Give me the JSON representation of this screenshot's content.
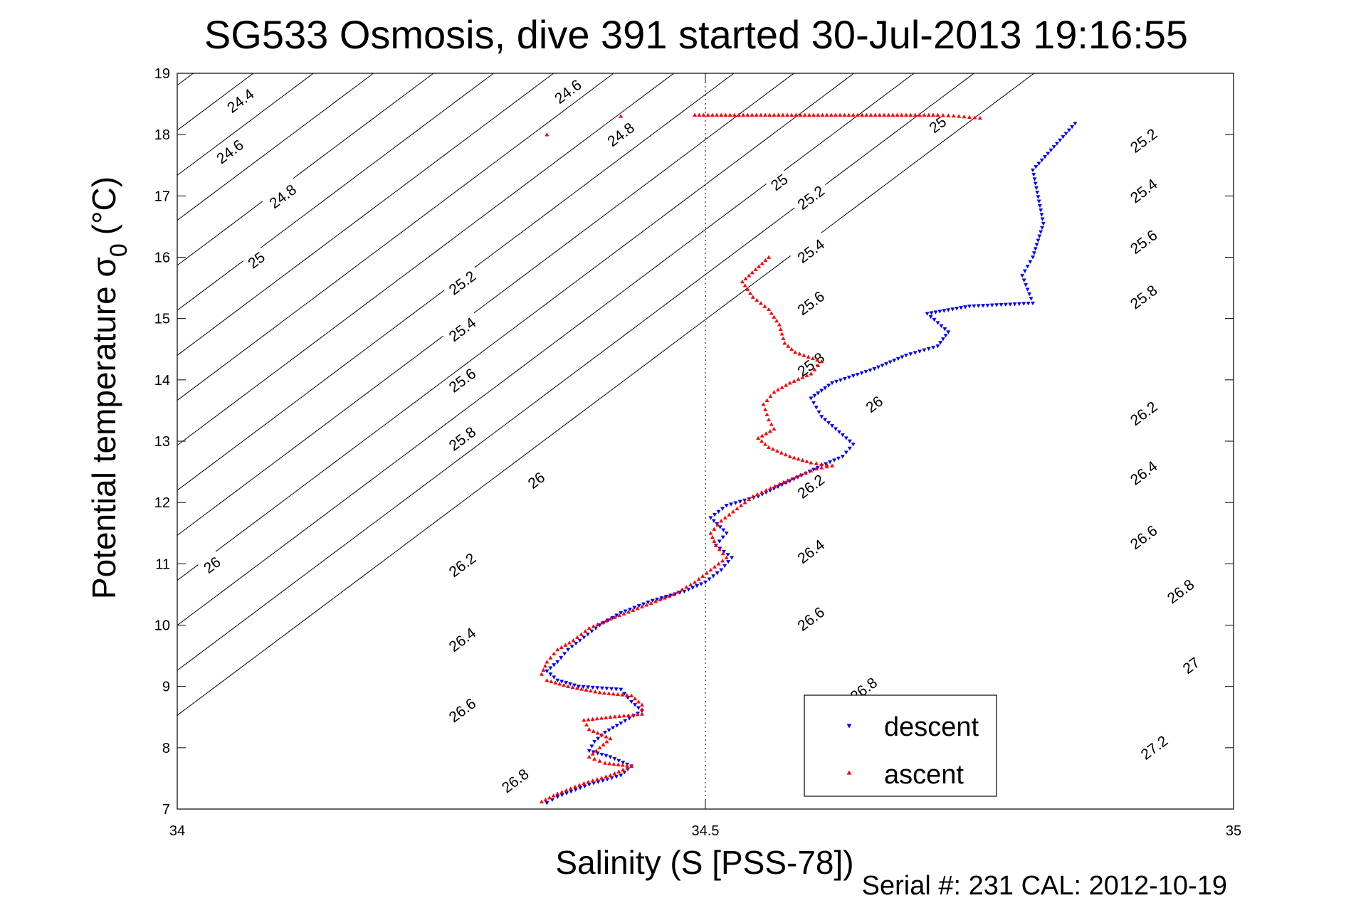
{
  "chart_data": {
    "type": "scatter",
    "title": "SG533 Osmosis, dive 391 started 30-Jul-2013 19:16:55",
    "xlabel": "Salinity (S [PSS-78])",
    "ylabel_main": "Potential temperature σ",
    "ylabel_sub": "0",
    "ylabel_unit": "(°C)",
    "xlim": [
      34,
      35
    ],
    "ylim": [
      7,
      19
    ],
    "xticks": [
      34,
      34.5,
      35
    ],
    "xtick_labels": [
      "34",
      "34.5",
      "35"
    ],
    "yticks": [
      7,
      8,
      9,
      10,
      11,
      12,
      13,
      14,
      15,
      16,
      17,
      18,
      19
    ],
    "ytick_labels": [
      "7",
      "8",
      "9",
      "10",
      "11",
      "12",
      "13",
      "14",
      "15",
      "16",
      "17",
      "18",
      "19"
    ],
    "grid": "dotted at x = 34.5",
    "footer": "Serial #: 231  CAL: 2012-10-19",
    "legend_position": "bottom-right",
    "density_contours": {
      "color": "#000000",
      "levels": [
        24.4,
        24.6,
        24.8,
        25,
        25.2,
        25.4,
        25.6,
        25.8,
        26,
        26.2,
        26.4,
        26.6,
        26.8,
        27,
        27.2
      ],
      "labels": [
        {
          "text": "24.4",
          "x": 34.06,
          "y": 18.55
        },
        {
          "text": "24.6",
          "x": 34.05,
          "y": 17.72
        },
        {
          "text": "24.8",
          "x": 34.1,
          "y": 16.99
        },
        {
          "text": "25",
          "x": 34.075,
          "y": 15.95
        },
        {
          "text": "25.2",
          "x": 34.27,
          "y": 15.58
        },
        {
          "text": "25.4",
          "x": 34.27,
          "y": 14.82
        },
        {
          "text": "25.6",
          "x": 34.27,
          "y": 13.99
        },
        {
          "text": "25.8",
          "x": 34.27,
          "y": 13.04
        },
        {
          "text": "26",
          "x": 34.34,
          "y": 12.36
        },
        {
          "text": "26",
          "x": 34.033,
          "y": 10.98
        },
        {
          "text": "26.2",
          "x": 34.27,
          "y": 10.98
        },
        {
          "text": "26.4",
          "x": 34.27,
          "y": 9.76
        },
        {
          "text": "26.6",
          "x": 34.27,
          "y": 8.61
        },
        {
          "text": "26.8",
          "x": 34.32,
          "y": 7.46
        },
        {
          "text": "24.6",
          "x": 34.37,
          "y": 18.7
        },
        {
          "text": "24.8",
          "x": 34.42,
          "y": 18.0
        },
        {
          "text": "25",
          "x": 34.57,
          "y": 17.22
        },
        {
          "text": "25.2",
          "x": 34.6,
          "y": 16.97
        },
        {
          "text": "25.4",
          "x": 34.6,
          "y": 16.1
        },
        {
          "text": "25.6",
          "x": 34.6,
          "y": 15.25
        },
        {
          "text": "25.8",
          "x": 34.6,
          "y": 14.25
        },
        {
          "text": "26",
          "x": 34.66,
          "y": 13.6
        },
        {
          "text": "26.2",
          "x": 34.6,
          "y": 12.26
        },
        {
          "text": "26.4",
          "x": 34.6,
          "y": 11.2
        },
        {
          "text": "26.6",
          "x": 34.6,
          "y": 10.1
        },
        {
          "text": "26.8",
          "x": 34.65,
          "y": 8.95
        },
        {
          "text": "25",
          "x": 34.72,
          "y": 18.16
        },
        {
          "text": "25.2",
          "x": 34.915,
          "y": 17.9
        },
        {
          "text": "25.4",
          "x": 34.915,
          "y": 17.08
        },
        {
          "text": "25.6",
          "x": 34.915,
          "y": 16.25
        },
        {
          "text": "25.8",
          "x": 34.915,
          "y": 15.35
        },
        {
          "text": "26.2",
          "x": 34.915,
          "y": 13.45
        },
        {
          "text": "26.4",
          "x": 34.915,
          "y": 12.48
        },
        {
          "text": "26.6",
          "x": 34.915,
          "y": 11.43
        },
        {
          "text": "26.8",
          "x": 34.95,
          "y": 10.55
        },
        {
          "text": "27",
          "x": 34.96,
          "y": 9.34
        },
        {
          "text": "27.2",
          "x": 34.925,
          "y": 8.0
        }
      ]
    },
    "series": [
      {
        "name": "descent",
        "color": "#0000ff",
        "marker": "triangle-down",
        "path": [
          [
            34.85,
            18.18
          ],
          [
            34.81,
            17.42
          ],
          [
            34.82,
            16.55
          ],
          [
            34.81,
            16.0
          ],
          [
            34.8,
            15.7
          ],
          [
            34.81,
            15.25
          ],
          [
            34.75,
            15.2
          ],
          [
            34.71,
            15.08
          ],
          [
            34.73,
            14.78
          ],
          [
            34.72,
            14.55
          ],
          [
            34.69,
            14.4
          ],
          [
            34.66,
            14.18
          ],
          [
            34.62,
            13.95
          ],
          [
            34.6,
            13.7
          ],
          [
            34.61,
            13.4
          ],
          [
            34.63,
            13.1
          ],
          [
            34.64,
            12.95
          ],
          [
            34.63,
            12.75
          ],
          [
            34.61,
            12.6
          ],
          [
            34.58,
            12.35
          ],
          [
            34.55,
            12.1
          ],
          [
            34.52,
            11.95
          ],
          [
            34.505,
            11.75
          ],
          [
            34.52,
            11.5
          ],
          [
            34.51,
            11.3
          ],
          [
            34.525,
            11.1
          ],
          [
            34.515,
            10.9
          ],
          [
            34.5,
            10.7
          ],
          [
            34.48,
            10.55
          ],
          [
            34.45,
            10.4
          ],
          [
            34.42,
            10.2
          ],
          [
            34.4,
            10.0
          ],
          [
            34.385,
            9.8
          ],
          [
            34.37,
            9.6
          ],
          [
            34.36,
            9.4
          ],
          [
            34.35,
            9.25
          ],
          [
            34.36,
            9.1
          ],
          [
            34.38,
            9.0
          ],
          [
            34.42,
            8.95
          ],
          [
            34.43,
            8.75
          ],
          [
            34.44,
            8.6
          ],
          [
            34.42,
            8.4
          ],
          [
            34.405,
            8.25
          ],
          [
            34.395,
            8.1
          ],
          [
            34.39,
            7.95
          ],
          [
            34.41,
            7.85
          ],
          [
            34.43,
            7.7
          ],
          [
            34.42,
            7.55
          ],
          [
            34.39,
            7.4
          ],
          [
            34.36,
            7.2
          ],
          [
            34.35,
            7.1
          ]
        ]
      },
      {
        "name": "ascent",
        "color": "#ff0000",
        "marker": "triangle-up",
        "path": [
          [
            34.35,
            18.0
          ],
          [
            34.42,
            18.3
          ],
          [
            34.49,
            18.32
          ],
          [
            34.54,
            18.32
          ],
          [
            34.59,
            18.32
          ],
          [
            34.64,
            18.32
          ],
          [
            34.69,
            18.32
          ],
          [
            34.72,
            18.32
          ],
          [
            34.74,
            18.3
          ],
          [
            34.76,
            18.27
          ],
          [
            34.56,
            16.0
          ],
          [
            34.535,
            15.6
          ],
          [
            34.545,
            15.35
          ],
          [
            34.56,
            15.15
          ],
          [
            34.57,
            14.9
          ],
          [
            34.575,
            14.6
          ],
          [
            34.585,
            14.45
          ],
          [
            34.61,
            14.3
          ],
          [
            34.6,
            14.1
          ],
          [
            34.58,
            13.95
          ],
          [
            34.565,
            13.8
          ],
          [
            34.555,
            13.6
          ],
          [
            34.56,
            13.35
          ],
          [
            34.565,
            13.2
          ],
          [
            34.55,
            13.05
          ],
          [
            34.56,
            12.9
          ],
          [
            34.58,
            12.75
          ],
          [
            34.6,
            12.65
          ],
          [
            34.62,
            12.6
          ],
          [
            34.605,
            12.55
          ],
          [
            34.59,
            12.45
          ],
          [
            34.57,
            12.3
          ],
          [
            34.545,
            12.1
          ],
          [
            34.53,
            11.9
          ],
          [
            34.515,
            11.7
          ],
          [
            34.505,
            11.5
          ],
          [
            34.51,
            11.3
          ],
          [
            34.52,
            11.1
          ],
          [
            34.505,
            10.9
          ],
          [
            34.49,
            10.7
          ],
          [
            34.47,
            10.5
          ],
          [
            34.44,
            10.3
          ],
          [
            34.41,
            10.1
          ],
          [
            34.39,
            9.95
          ],
          [
            34.375,
            9.75
          ],
          [
            34.36,
            9.6
          ],
          [
            34.35,
            9.4
          ],
          [
            34.345,
            9.2
          ],
          [
            34.35,
            9.1
          ],
          [
            34.37,
            9.0
          ],
          [
            34.4,
            8.9
          ],
          [
            34.43,
            8.85
          ],
          [
            34.44,
            8.7
          ],
          [
            34.44,
            8.55
          ],
          [
            34.41,
            8.5
          ],
          [
            34.385,
            8.45
          ],
          [
            34.39,
            8.3
          ],
          [
            34.41,
            8.15
          ],
          [
            34.4,
            8.0
          ],
          [
            34.39,
            7.85
          ],
          [
            34.405,
            7.75
          ],
          [
            34.43,
            7.7
          ],
          [
            34.41,
            7.55
          ],
          [
            34.385,
            7.42
          ],
          [
            34.36,
            7.25
          ],
          [
            34.345,
            7.12
          ]
        ]
      }
    ]
  }
}
